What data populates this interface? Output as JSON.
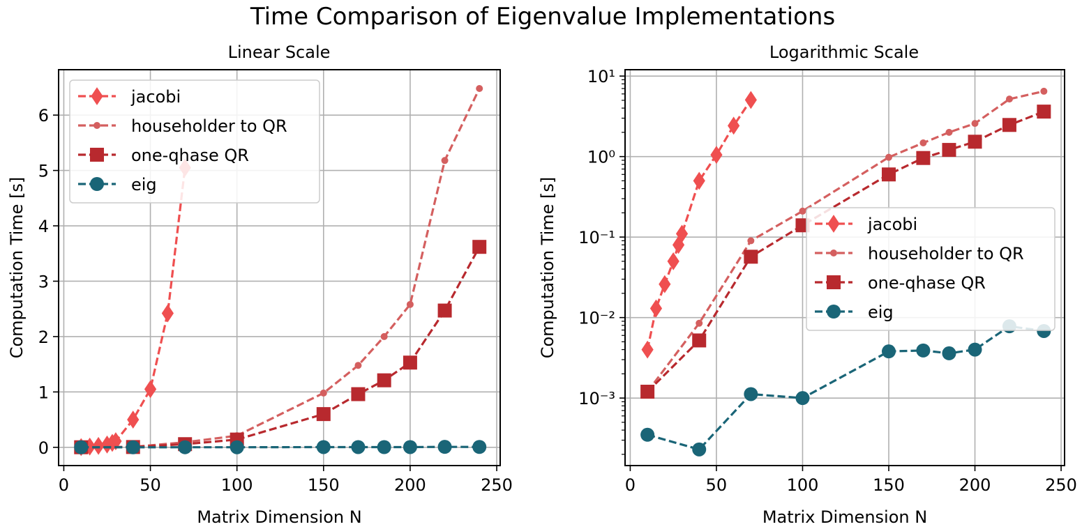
{
  "figure": {
    "title": "Time Comparison of Eigenvalue Implementations"
  },
  "colors": {
    "jacobi": "#ef4f50",
    "householder": "#d45f5f",
    "onephase": "#b8292e",
    "eig": "#1a6577",
    "grid": "#b0b0b0"
  },
  "chart_data": [
    {
      "type": "line",
      "title": "Linear Scale",
      "xlabel": "Matrix Dimension N",
      "ylabel": "Computation Time [s]",
      "xlim": [
        -3,
        252
      ],
      "ylim": [
        -0.33,
        6.82
      ],
      "yscale": "linear",
      "xticks": [
        0,
        50,
        100,
        150,
        200,
        250
      ],
      "yticks": [
        0,
        1,
        2,
        3,
        4,
        5,
        6
      ],
      "xtick_labels": [
        "0",
        "50",
        "100",
        "150",
        "200",
        "250"
      ],
      "ytick_labels": [
        "0",
        "1",
        "2",
        "3",
        "4",
        "5",
        "6"
      ],
      "grid": true,
      "legend_position": "top-left",
      "series": [
        {
          "name": "jacobi",
          "marker": "diamond",
          "x": [
            10,
            15,
            20,
            25,
            28,
            30,
            40,
            50,
            60,
            70
          ],
          "y": [
            0.004,
            0.013,
            0.026,
            0.05,
            0.08,
            0.11,
            0.5,
            1.05,
            2.42,
            5.05
          ]
        },
        {
          "name": "householder to QR",
          "marker": "small-circle",
          "x": [
            10,
            40,
            70,
            100,
            150,
            170,
            185,
            200,
            220,
            240
          ],
          "y": [
            0.0012,
            0.0085,
            0.09,
            0.21,
            0.98,
            1.48,
            2.0,
            2.58,
            5.18,
            6.48
          ]
        },
        {
          "name": "one-qhase QR",
          "marker": "square",
          "x": [
            10,
            40,
            70,
            100,
            150,
            170,
            185,
            200,
            220,
            240
          ],
          "y": [
            0.0012,
            0.0052,
            0.057,
            0.14,
            0.6,
            0.96,
            1.21,
            1.53,
            2.47,
            3.62
          ]
        },
        {
          "name": "eig",
          "marker": "circle",
          "x": [
            10,
            40,
            70,
            100,
            150,
            170,
            185,
            200,
            220,
            240
          ],
          "y": [
            0.00035,
            0.00023,
            0.00112,
            0.001,
            0.0038,
            0.0039,
            0.0036,
            0.004,
            0.0078,
            0.0068
          ]
        }
      ]
    },
    {
      "type": "line",
      "title": "Logarithmic Scale",
      "xlabel": "Matrix Dimension N",
      "ylabel": "Computation Time [s]",
      "xlim": [
        -3,
        252
      ],
      "ylim": [
        0.000145,
        12.0
      ],
      "yscale": "log",
      "xticks": [
        0,
        50,
        100,
        150,
        200,
        250
      ],
      "yticks": [
        0.001,
        0.01,
        0.1,
        1,
        10
      ],
      "xtick_labels": [
        "0",
        "50",
        "100",
        "150",
        "200",
        "250"
      ],
      "ytick_labels": [
        "10⁻³",
        "10⁻²",
        "10⁻¹",
        "10⁰",
        "10¹"
      ],
      "grid": true,
      "legend_position": "center-right",
      "series": [
        {
          "name": "jacobi",
          "marker": "diamond",
          "x": [
            10,
            15,
            20,
            25,
            28,
            30,
            40,
            50,
            60,
            70
          ],
          "y": [
            0.004,
            0.013,
            0.026,
            0.05,
            0.08,
            0.11,
            0.5,
            1.05,
            2.42,
            5.05
          ]
        },
        {
          "name": "householder to QR",
          "marker": "small-circle",
          "x": [
            10,
            40,
            70,
            100,
            150,
            170,
            185,
            200,
            220,
            240
          ],
          "y": [
            0.0012,
            0.0085,
            0.09,
            0.21,
            0.98,
            1.48,
            2.0,
            2.58,
            5.18,
            6.48
          ]
        },
        {
          "name": "one-qhase QR",
          "marker": "square",
          "x": [
            10,
            40,
            70,
            100,
            150,
            170,
            185,
            200,
            220,
            240
          ],
          "y": [
            0.0012,
            0.0052,
            0.057,
            0.14,
            0.6,
            0.96,
            1.21,
            1.53,
            2.47,
            3.62
          ]
        },
        {
          "name": "eig",
          "marker": "circle",
          "x": [
            10,
            40,
            70,
            100,
            150,
            170,
            185,
            200,
            220,
            240
          ],
          "y": [
            0.00035,
            0.00023,
            0.00112,
            0.001,
            0.0038,
            0.0039,
            0.0036,
            0.004,
            0.0078,
            0.0068
          ]
        }
      ]
    }
  ]
}
